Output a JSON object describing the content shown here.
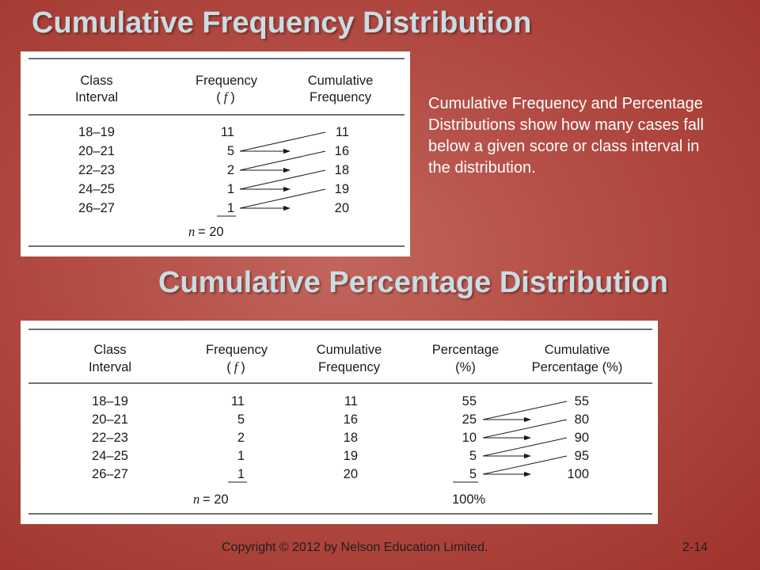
{
  "slide": {
    "title": "Cumulative Frequency Distribution",
    "subtitle": "Cumulative Percentage Distribution",
    "description": "Cumulative Frequency and Percentage Distributions show how many cases fall below a given score or class interval in the distribution.",
    "footer_copyright": "Copyright © 2012 by Nelson Education Limited.",
    "page_number": "2-14"
  },
  "table1": {
    "headers": {
      "class_line1": "Class",
      "class_line2": "Interval",
      "freq_line1": "Frequency",
      "freq_open": "(",
      "freq_symbol": "f",
      "freq_close": ")",
      "cf_line1": "Cumulative",
      "cf_line2": "Frequency"
    },
    "rows": [
      {
        "interval": "18–19",
        "f": "11",
        "cf": "11"
      },
      {
        "interval": "20–21",
        "f": "5",
        "cf": "16"
      },
      {
        "interval": "22–23",
        "f": "2",
        "cf": "18"
      },
      {
        "interval": "24–25",
        "f": "1",
        "cf": "19"
      },
      {
        "interval": "26–27",
        "f": "1",
        "cf": "20"
      }
    ],
    "total_symbol": "n",
    "total_value": "= 20"
  },
  "table2": {
    "headers": {
      "class_line1": "Class",
      "class_line2": "Interval",
      "freq_line1": "Frequency",
      "freq_open": "(",
      "freq_symbol": "f",
      "freq_close": ")",
      "cf_line1": "Cumulative",
      "cf_line2": "Frequency",
      "pct_line1": "Percentage",
      "pct_line2": "(%)",
      "cpct_line1": "Cumulative",
      "cpct_line2": "Percentage (%)"
    },
    "rows": [
      {
        "interval": "18–19",
        "f": "11",
        "cf": "11",
        "pct": "55",
        "cpct": "55"
      },
      {
        "interval": "20–21",
        "f": "5",
        "cf": "16",
        "pct": "25",
        "cpct": "80"
      },
      {
        "interval": "22–23",
        "f": "2",
        "cf": "18",
        "pct": "10",
        "cpct": "90"
      },
      {
        "interval": "24–25",
        "f": "1",
        "cf": "19",
        "pct": "5",
        "cpct": "95"
      },
      {
        "interval": "26–27",
        "f": "1",
        "cf": "20",
        "pct": "5",
        "cpct": "100"
      }
    ],
    "total_symbol": "n",
    "total_value": "= 20",
    "pct_total": "100%"
  }
}
